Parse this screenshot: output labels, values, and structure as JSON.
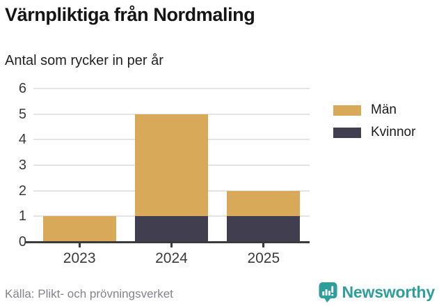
{
  "header": {
    "title": "Värnpliktiga från Nordmaling",
    "subtitle": "Antal som rycker in per år"
  },
  "chart_data": {
    "type": "bar",
    "stacked": true,
    "title": "Värnpliktiga från Nordmaling",
    "subtitle": "Antal som rycker in per år",
    "categories": [
      "2023",
      "2024",
      "2025"
    ],
    "series": [
      {
        "name": "Män",
        "color": "#d9a95a",
        "values": [
          1,
          4,
          1
        ]
      },
      {
        "name": "Kvinnor",
        "color": "#413f4f",
        "values": [
          0,
          1,
          1
        ]
      }
    ],
    "stacked_totals": [
      1,
      5,
      2
    ],
    "xlabel": "",
    "ylabel": "",
    "ylim": [
      0,
      6
    ],
    "yticks": [
      0,
      1,
      2,
      3,
      4,
      5,
      6
    ],
    "grid": true,
    "legend_position": "right-top"
  },
  "footer": {
    "source": "Källa: Plikt- och prövningsverket",
    "brand_name": "Newsworthy",
    "brand_icon": "bar-chart-speech-bubble-icon"
  },
  "colors": {
    "men": "#d9a95a",
    "women": "#413f4f",
    "gridline": "#e4e4e4",
    "axis": "#3b3b3b",
    "tick_label": "#3a3a3a",
    "title": "#151515",
    "source_text": "#83838d",
    "brand_teal": "#2e9e9a"
  }
}
